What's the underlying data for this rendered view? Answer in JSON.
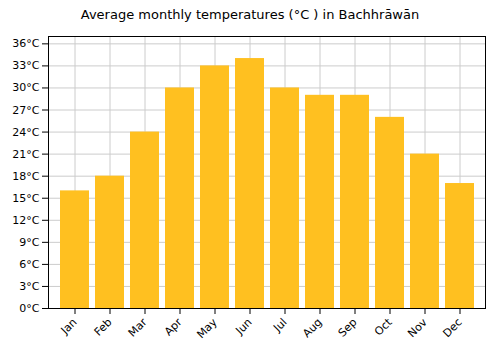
{
  "chart_data": {
    "type": "bar",
    "title": "Average monthly temperatures (°C ) in Bachhrāwān",
    "categories": [
      "Jan",
      "Feb",
      "Mar",
      "Apr",
      "May",
      "Jun",
      "Jul",
      "Aug",
      "Sep",
      "Oct",
      "Nov",
      "Dec"
    ],
    "values": [
      16,
      18,
      24,
      30,
      33,
      34,
      30,
      29,
      29,
      26,
      21,
      17
    ],
    "color": "#FFC020",
    "ylim": [
      0,
      37
    ],
    "yticks": [
      {
        "value": 0,
        "label": "0°C"
      },
      {
        "value": 3,
        "label": "3°C"
      },
      {
        "value": 6,
        "label": "6°C"
      },
      {
        "value": 9,
        "label": "9°C"
      },
      {
        "value": 12,
        "label": "12°C"
      },
      {
        "value": 15,
        "label": "15°C"
      },
      {
        "value": 18,
        "label": "18°C"
      },
      {
        "value": 21,
        "label": "21°C"
      },
      {
        "value": 24,
        "label": "24°C"
      },
      {
        "value": 27,
        "label": "27°C"
      },
      {
        "value": 30,
        "label": "30°C"
      },
      {
        "value": 33,
        "label": "33°C"
      },
      {
        "value": 36,
        "label": "36°C"
      }
    ],
    "grid": true
  }
}
